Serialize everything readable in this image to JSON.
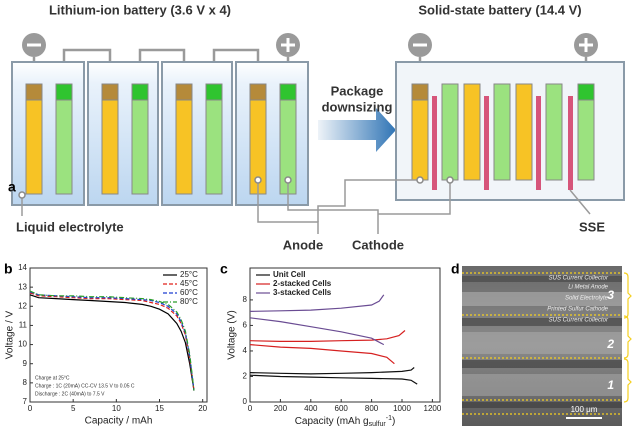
{
  "panel_a": {
    "label": "a",
    "title_left": "Lithium-ion battery (3.6 V x 4)",
    "title_right": "Solid-state battery (14.4 V)",
    "arrow_text": [
      "Package",
      "downsizing"
    ],
    "labels": {
      "liquid": "Liquid electrolyte",
      "anode": "Anode",
      "cathode": "Cathode",
      "sse": "SSE"
    }
  },
  "chart_data": [
    {
      "type": "line",
      "panel_label": "b",
      "xlabel": "Capacity / mAh",
      "ylabel": "Voltage / V",
      "xlim": [
        0,
        20.5
      ],
      "ylim": [
        7,
        14
      ],
      "xticks": [
        0,
        5,
        10,
        15,
        20
      ],
      "yticks": [
        7,
        8,
        9,
        10,
        11,
        12,
        13,
        14
      ],
      "legend": "upper right",
      "annotations": [
        "Charge at 25°C",
        "Charge : 1C (20mA) CC-CV 13.5 V to 0.05 C",
        "Discharge : 2C (40mA) to 7.5 V"
      ],
      "x": [
        0,
        1,
        3,
        5,
        7,
        9,
        11,
        13,
        14,
        15,
        16,
        17,
        17.5,
        18,
        18.5,
        19
      ],
      "series": [
        {
          "name": "25°C",
          "color": "#000000",
          "style": "solid",
          "values": [
            12.6,
            12.45,
            12.4,
            12.35,
            12.3,
            12.25,
            12.2,
            12.1,
            12.0,
            11.85,
            11.6,
            11.1,
            10.7,
            10.1,
            9.0,
            7.6
          ]
        },
        {
          "name": "45°C",
          "color": "#e0201a",
          "style": "dashed",
          "values": [
            12.7,
            12.55,
            12.5,
            12.45,
            12.4,
            12.4,
            12.35,
            12.3,
            12.2,
            12.1,
            11.9,
            11.5,
            11.1,
            10.5,
            9.3,
            7.6
          ]
        },
        {
          "name": "60°C",
          "color": "#1f3fd0",
          "style": "dashed",
          "values": [
            12.75,
            12.6,
            12.55,
            12.5,
            12.45,
            12.45,
            12.4,
            12.35,
            12.3,
            12.2,
            12.0,
            11.6,
            11.2,
            10.6,
            9.4,
            7.6
          ]
        },
        {
          "name": "80°C",
          "color": "#2a9d2a",
          "style": "dashdot",
          "values": [
            12.8,
            12.6,
            12.55,
            12.55,
            12.5,
            12.5,
            12.45,
            12.4,
            12.35,
            12.25,
            12.1,
            11.7,
            11.3,
            10.7,
            9.5,
            7.6
          ]
        }
      ]
    },
    {
      "type": "line",
      "panel_label": "c",
      "xlabel_parts": [
        "Capacity (mAh g",
        "sulfur",
        "-1",
        ")"
      ],
      "ylabel": "Voltage (V)",
      "xlim": [
        0,
        1250
      ],
      "ylim": [
        0,
        10.5
      ],
      "xticks": [
        0,
        200,
        400,
        600,
        800,
        1000,
        1200
      ],
      "yticks": [
        0,
        2,
        4,
        6,
        8
      ],
      "legend": "upper left",
      "series": [
        {
          "name": "Unit Cell",
          "color": "#111111",
          "style": "solid",
          "x": [
            0,
            200,
            400,
            600,
            800,
            1000,
            1060,
            1080,
            null,
            0,
            200,
            400,
            600,
            800,
            1000,
            1060,
            1100
          ],
          "values": [
            2.3,
            2.25,
            2.2,
            2.25,
            2.3,
            2.4,
            2.5,
            2.7,
            null,
            2.1,
            2.0,
            1.95,
            1.9,
            1.85,
            1.8,
            1.7,
            1.4
          ]
        },
        {
          "name": "2-stacked Cells",
          "color": "#d62020",
          "style": "solid",
          "x": [
            0,
            200,
            400,
            600,
            800,
            900,
            980,
            1020,
            null,
            0,
            200,
            400,
            600,
            800,
            900,
            950
          ],
          "values": [
            4.8,
            4.75,
            4.75,
            4.8,
            4.85,
            4.95,
            5.2,
            5.6,
            null,
            4.5,
            4.3,
            4.2,
            4.0,
            3.8,
            3.5,
            3.0
          ]
        },
        {
          "name": "3-stacked Cells",
          "color": "#6a4c93",
          "style": "solid",
          "x": [
            0,
            200,
            400,
            600,
            800,
            850,
            880,
            null,
            0,
            200,
            400,
            600,
            800,
            880
          ],
          "values": [
            7.1,
            7.15,
            7.2,
            7.35,
            7.6,
            7.9,
            8.4,
            null,
            6.6,
            6.3,
            5.9,
            5.5,
            5.0,
            4.5
          ]
        }
      ]
    }
  ],
  "panel_d": {
    "label": "d",
    "layers": [
      "SUS Current Collector",
      "Li Metal Anode",
      "Solid Electrolyte",
      "Printed Sulfur Cathode",
      "SUS Current Collector"
    ],
    "units": [
      "3",
      "2",
      "1"
    ],
    "scale": "100 μm"
  }
}
